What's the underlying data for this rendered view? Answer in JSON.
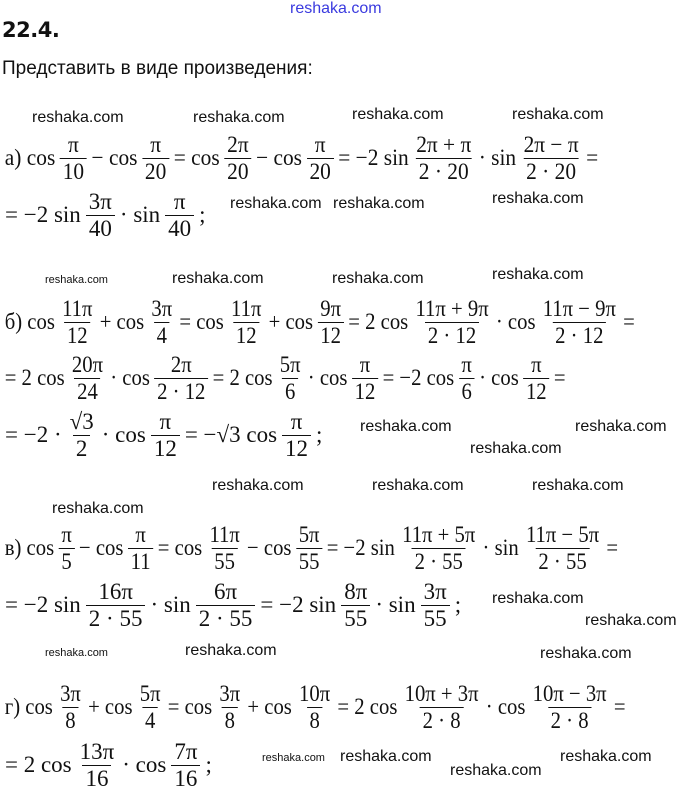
{
  "problem": {
    "number": "22.4.",
    "instruction": "Представить в виде произведения:"
  },
  "parts": [
    {
      "label": "а)",
      "lines": [
        [
          "а) cos",
          {
            "n": "π",
            "d": "10"
          },
          "− cos",
          {
            "n": "π",
            "d": "20"
          },
          "= cos",
          {
            "n": "2π",
            "d": "20"
          },
          "− cos",
          {
            "n": "π",
            "d": "20"
          },
          "= −2 sin",
          {
            "n": "2π + π",
            "d": "2 · 20"
          },
          "· sin",
          {
            "n": "2π − π",
            "d": "2 · 20"
          },
          "="
        ],
        [
          "= −2 sin",
          {
            "n": "3π",
            "d": "40"
          },
          "· sin",
          {
            "n": "π",
            "d": "40"
          },
          ";"
        ]
      ]
    },
    {
      "label": "б)",
      "lines": [
        [
          "б) cos",
          {
            "n": "11π",
            "d": "12"
          },
          "+ cos",
          {
            "n": "3π",
            "d": "4"
          },
          "= cos",
          {
            "n": "11π",
            "d": "12"
          },
          "+ cos",
          {
            "n": "9π",
            "d": "12"
          },
          "= 2 cos",
          {
            "n": "11π + 9π",
            "d": "2 · 12"
          },
          "· cos",
          {
            "n": "11π − 9π",
            "d": "2 · 12"
          },
          "="
        ],
        [
          "= 2 cos",
          {
            "n": "20π",
            "d": "24"
          },
          "· cos",
          {
            "n": "2π",
            "d": "2 · 12"
          },
          "= 2 cos",
          {
            "n": "5π",
            "d": "6"
          },
          "· cos",
          {
            "n": "π",
            "d": "12"
          },
          "= −2 cos",
          {
            "n": "π",
            "d": "6"
          },
          "· cos",
          {
            "n": "π",
            "d": "12"
          },
          "="
        ],
        [
          "= −2 ·",
          {
            "n": "√3",
            "d": "2"
          },
          "· cos",
          {
            "n": "π",
            "d": "12"
          },
          "= −√3 cos",
          {
            "n": "π",
            "d": "12"
          },
          ";"
        ]
      ]
    },
    {
      "label": "в)",
      "lines": [
        [
          "в) cos",
          {
            "n": "π",
            "d": "5"
          },
          "− cos",
          {
            "n": "π",
            "d": "11"
          },
          "= cos",
          {
            "n": "11π",
            "d": "55"
          },
          "− cos",
          {
            "n": "5π",
            "d": "55"
          },
          "= −2 sin",
          {
            "n": "11π + 5π",
            "d": "2 · 55"
          },
          "· sin",
          {
            "n": "11π − 5π",
            "d": "2 · 55"
          },
          "="
        ],
        [
          "= −2 sin",
          {
            "n": "16π",
            "d": "2 · 55"
          },
          "· sin",
          {
            "n": "6π",
            "d": "2 · 55"
          },
          "= −2 sin",
          {
            "n": "8π",
            "d": "55"
          },
          "· sin",
          {
            "n": "3π",
            "d": "55"
          },
          ";"
        ]
      ]
    },
    {
      "label": "г)",
      "lines": [
        [
          "г) cos",
          {
            "n": "3π",
            "d": "8"
          },
          "+ cos",
          {
            "n": "5π",
            "d": "4"
          },
          "= cos",
          {
            "n": "3π",
            "d": "8"
          },
          "+ cos",
          {
            "n": "10π",
            "d": "8"
          },
          "= 2 cos",
          {
            "n": "10π + 3π",
            "d": "2 · 8"
          },
          "· cos",
          {
            "n": "10π − 3π",
            "d": "2 · 8"
          },
          "="
        ],
        [
          "= 2 cos",
          {
            "n": "13π",
            "d": "16"
          },
          "· cos",
          {
            "n": "7π",
            "d": "16"
          },
          ";"
        ]
      ]
    }
  ],
  "watermarks": [
    "reshaka.com",
    "reshaka.com",
    "reshaka.com",
    "reshaka.com",
    "reshaka.com",
    "reshaka.com",
    "reshaka.com",
    "reshaka.com",
    "reshaka.com",
    "reshaka.com",
    "reshaka.com",
    "reshaka.com",
    "reshaka.com",
    "reshaka.com",
    "reshaka.com",
    "reshaka.com",
    "reshaka.com",
    "reshaka.com",
    "reshaka.com",
    "reshaka.com",
    "reshaka.com",
    "reshaka.com",
    "reshaka.com",
    "reshaka.com",
    "reshaka.com",
    "reshaka.com",
    "reshaka.com",
    "reshaka.com"
  ],
  "colors": {
    "text": "#111111",
    "watermark_top": "#3a3adf"
  }
}
